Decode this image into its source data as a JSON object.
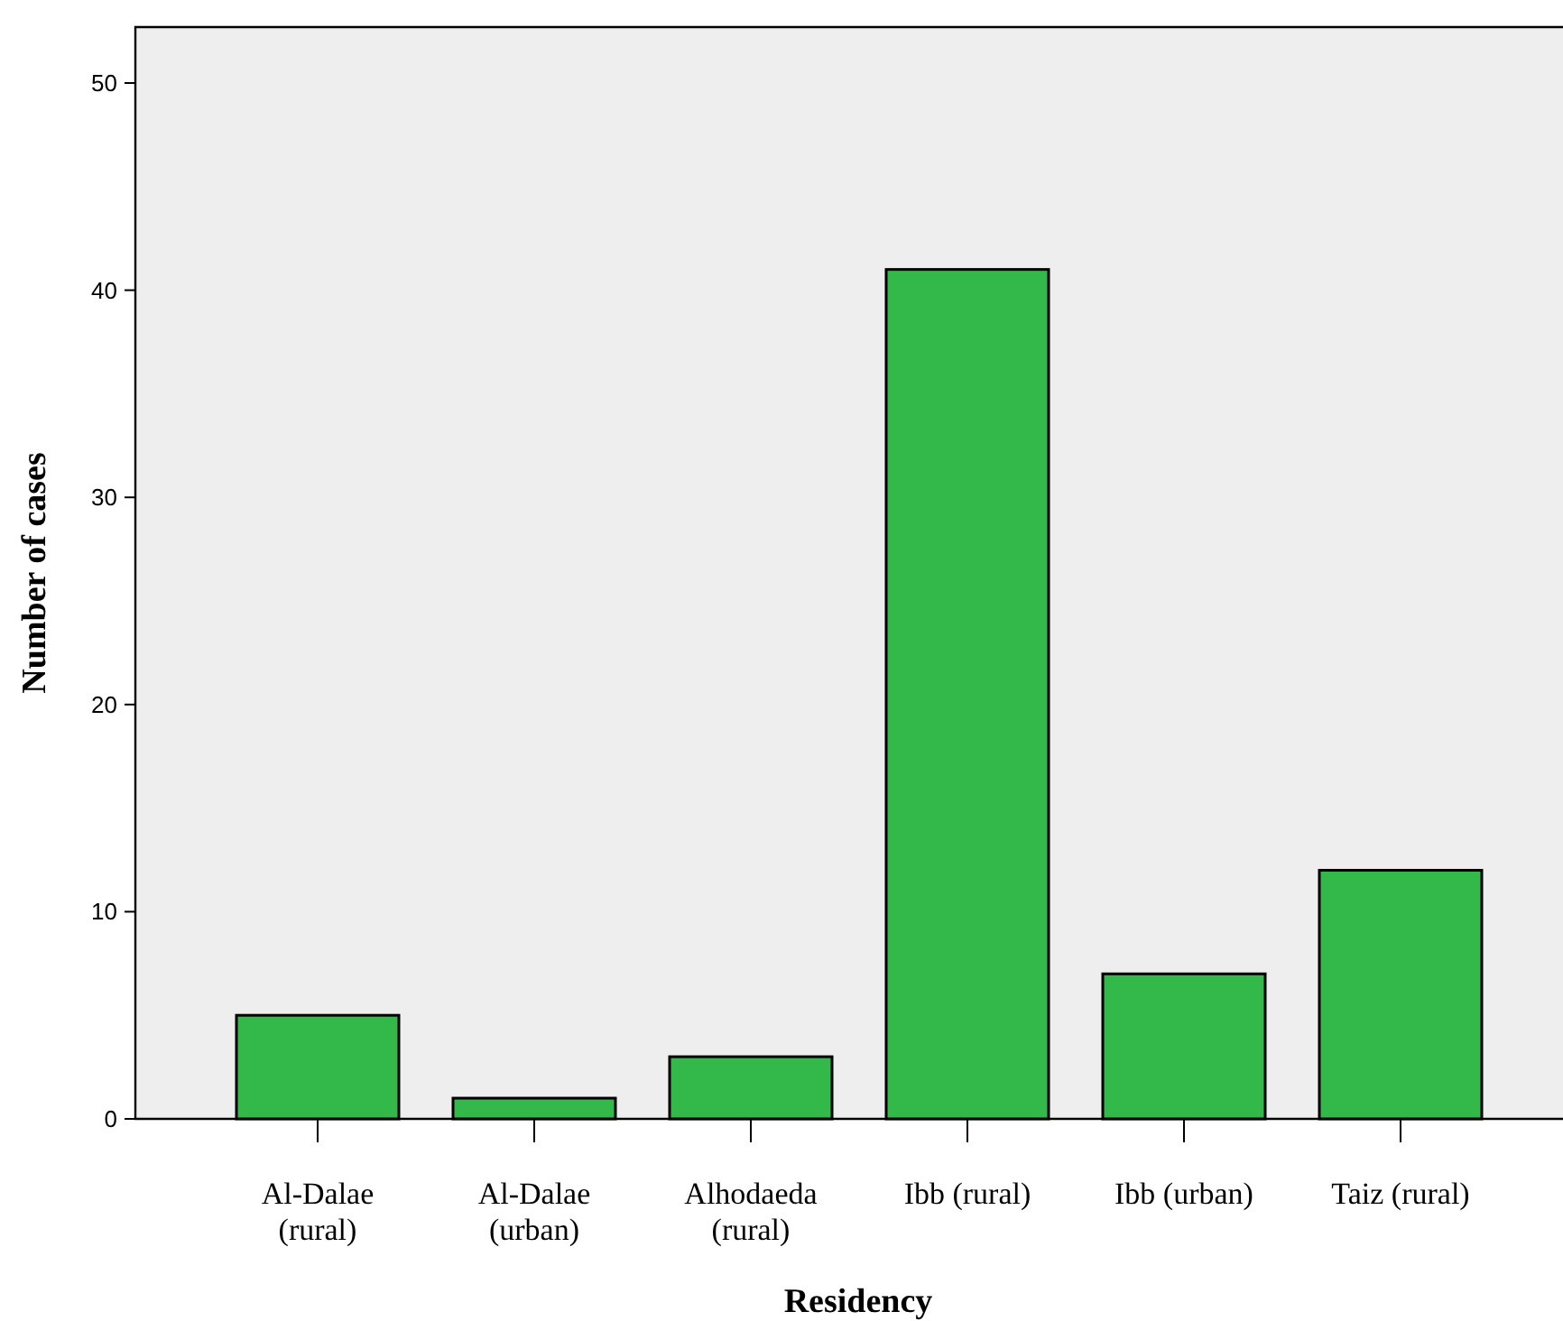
{
  "chart_data": {
    "type": "bar",
    "xlabel": "Residency",
    "ylabel": "Number of cases",
    "categories": [
      "Al-Dalae (rural)",
      "Al-Dalae (urban)",
      "Alhodaeda (rural)",
      "Ibb (rural)",
      "Ibb (urban)",
      "Taiz (rural)"
    ],
    "values": [
      5,
      1,
      3,
      41,
      7,
      12
    ],
    "color": "#33b84a",
    "ylim": [
      0,
      52.7
    ],
    "yticks": [
      0,
      10,
      20,
      30,
      40,
      50
    ],
    "grid": false
  }
}
